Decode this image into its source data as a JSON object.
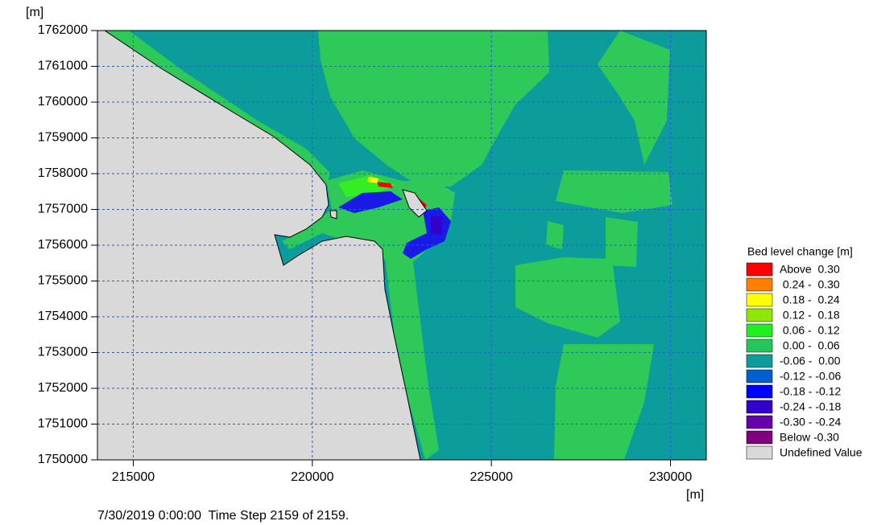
{
  "chart_data": {
    "type": "map",
    "y_label": "[m]",
    "x_label": "[m]",
    "xlim": [
      214000,
      231000
    ],
    "ylim": [
      1750000,
      1762000
    ],
    "xticks": [
      215000,
      220000,
      225000,
      230000
    ],
    "yticks": [
      1750000,
      1751000,
      1752000,
      1753000,
      1754000,
      1755000,
      1756000,
      1757000,
      1758000,
      1759000,
      1760000,
      1761000,
      1762000
    ],
    "grid": true,
    "background_color": "#0c9c9c",
    "legend": {
      "title": "Bed level change [m]",
      "items": [
        {
          "label": "Above  0.30",
          "color": "#ff0000"
        },
        {
          "label": " 0.24 -  0.30",
          "color": "#ff8000"
        },
        {
          "label": " 0.18 -  0.24",
          "color": "#ffff00"
        },
        {
          "label": " 0.12 -  0.18",
          "color": "#8fe800"
        },
        {
          "label": " 0.06 -  0.12",
          "color": "#22ee22"
        },
        {
          "label": " 0.00 -  0.06",
          "color": "#22c85a"
        },
        {
          "label": "-0.06 -  0.00",
          "color": "#0c9c9c"
        },
        {
          "label": "-0.12 - -0.06",
          "color": "#0060d0"
        },
        {
          "label": "-0.18 - -0.12",
          "color": "#0000ff"
        },
        {
          "label": "-0.24 - -0.18",
          "color": "#3300cc"
        },
        {
          "label": "-0.30 - -0.24",
          "color": "#6600aa"
        },
        {
          "label": "Below -0.30",
          "color": "#800080"
        },
        {
          "label": "Undefined Value",
          "color": "#d9d9d9"
        }
      ]
    },
    "footer": "7/30/2019 0:00:00  Time Step 2159 of 2159."
  }
}
